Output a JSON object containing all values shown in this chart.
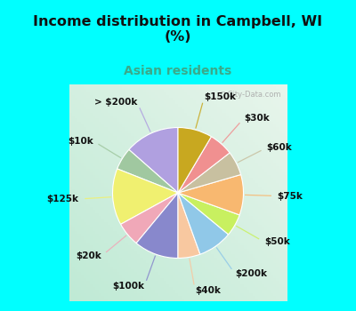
{
  "title": "Income distribution in Campbell, WI\n(%)",
  "subtitle": "Asian residents",
  "title_color": "#111111",
  "subtitle_color": "#3aaa8a",
  "background_cyan": "#00ffff",
  "background_chart_tl": "#ddf0ee",
  "background_chart_br": "#c8ead8",
  "watermark": "ⓘ City-Data.com",
  "labels": [
    "> $200k",
    "$10k",
    "$125k",
    "$20k",
    "$100k",
    "$40k",
    "$200k",
    "$50k",
    "$75k",
    "$60k",
    "$30k",
    "$150k"
  ],
  "values": [
    13.5,
    5.5,
    14.0,
    6.0,
    11.0,
    5.5,
    8.5,
    5.5,
    10.0,
    6.0,
    6.0,
    8.5
  ],
  "colors": [
    "#b0a0e0",
    "#a0c8a0",
    "#f0f070",
    "#f0a8b8",
    "#8888cc",
    "#f8c8a0",
    "#90c8e8",
    "#c8f060",
    "#f8b870",
    "#c8c0a0",
    "#f09090",
    "#c8a820"
  ],
  "startangle": 90,
  "figsize": [
    4.0,
    3.5
  ],
  "dpi": 100,
  "label_fontsize": 7.5
}
